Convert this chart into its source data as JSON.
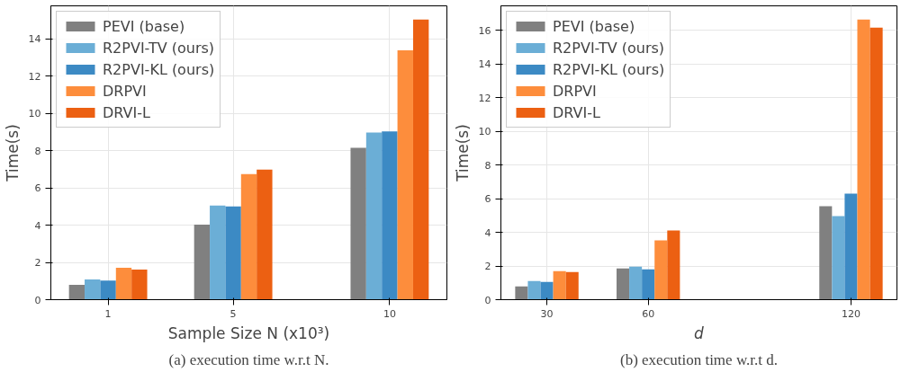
{
  "chart_data": [
    {
      "type": "bar",
      "x": [
        1,
        5,
        10
      ],
      "xlabel": "Sample Size N (x10³)",
      "ylabel": "Time(s)",
      "xlim": [
        -0.83,
        11.83
      ],
      "ylim": [
        0,
        15.76
      ],
      "xticks": [
        1,
        5,
        10
      ],
      "yticks": [
        0,
        2,
        4,
        6,
        8,
        10,
        12,
        14
      ],
      "grid": true,
      "legend": "top left",
      "series": [
        {
          "name": "PEVI (base)",
          "color": "#808080",
          "values": [
            0.79,
            4.03,
            8.15
          ]
        },
        {
          "name": "R2PVI-TV (ours)",
          "color": "#6baed6",
          "values": [
            1.08,
            5.05,
            8.97
          ]
        },
        {
          "name": "R2PVI-KL (ours)",
          "color": "#3c8ac4",
          "values": [
            1.03,
            5.0,
            9.02
          ]
        },
        {
          "name": "DRPVI",
          "color": "#fd8d3c",
          "values": [
            1.71,
            6.74,
            13.37
          ]
        },
        {
          "name": "DRVI-L",
          "color": "#ec6012",
          "values": [
            1.61,
            6.98,
            15.02
          ]
        }
      ],
      "annotations": [
        "(a) execution time w.r.t N."
      ]
    },
    {
      "type": "bar",
      "x": [
        30,
        60,
        120
      ],
      "xlabel": "d",
      "ylabel": "Time(s)",
      "xlim": [
        16.4,
        133.6
      ],
      "ylim": [
        0,
        17.46
      ],
      "xticks": [
        30,
        60,
        120
      ],
      "yticks": [
        0,
        2,
        4,
        6,
        8,
        10,
        12,
        14,
        16
      ],
      "grid": true,
      "legend": "top left",
      "series": [
        {
          "name": "PEVI (base)",
          "color": "#808080",
          "values": [
            0.79,
            1.86,
            5.55
          ]
        },
        {
          "name": "R2PVI-TV (ours)",
          "color": "#6baed6",
          "values": [
            1.11,
            1.96,
            4.96
          ]
        },
        {
          "name": "R2PVI-KL (ours)",
          "color": "#3c8ac4",
          "values": [
            1.05,
            1.8,
            6.3
          ]
        },
        {
          "name": "DRPVI",
          "color": "#fd8d3c",
          "values": [
            1.7,
            3.52,
            16.64
          ]
        },
        {
          "name": "DRVI-L",
          "color": "#ec6012",
          "values": [
            1.64,
            4.11,
            16.16
          ]
        }
      ],
      "annotations": [
        "(b) execution time w.r.t d."
      ]
    }
  ]
}
